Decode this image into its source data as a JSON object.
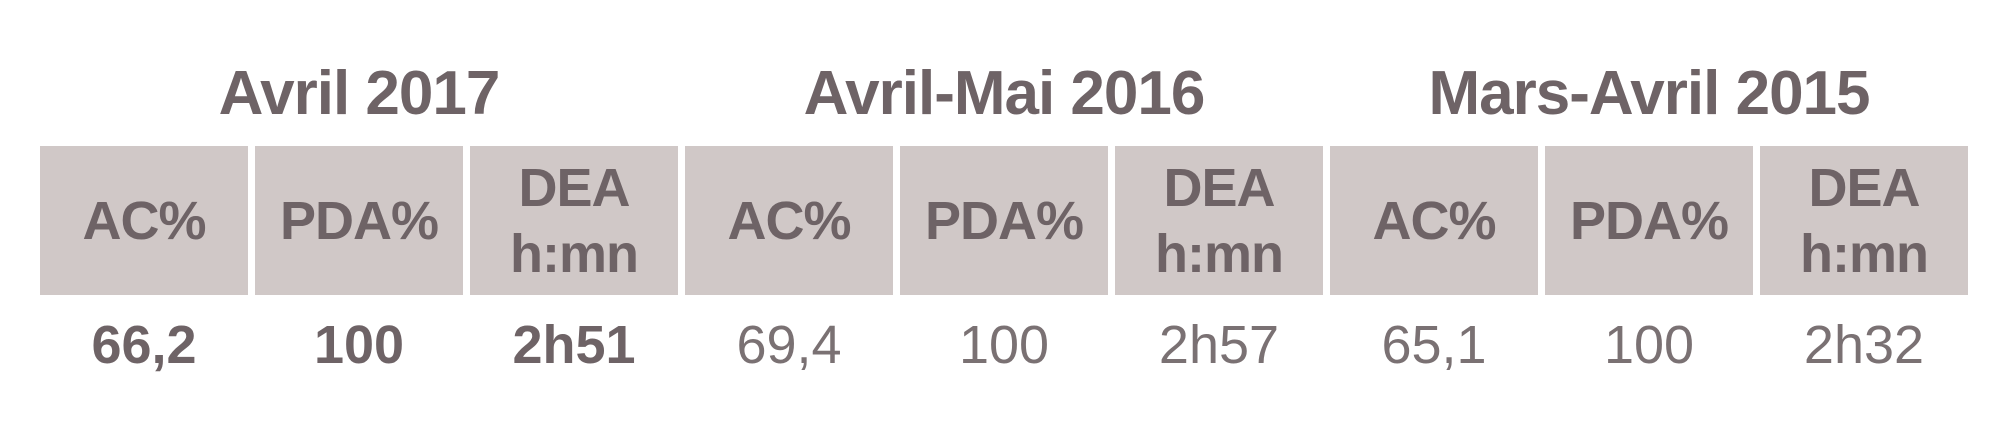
{
  "chart_data": {
    "type": "table",
    "description": "Comparison table of AC%, PDA% and DEA (h:mn) across three survey periods",
    "column_groups": [
      {
        "title": "Avril 2017",
        "emphasized": true,
        "columns": [
          {
            "header_lines": [
              "AC%"
            ],
            "value": "66,2"
          },
          {
            "header_lines": [
              "PDA%"
            ],
            "value": "100"
          },
          {
            "header_lines": [
              "DEA",
              "h:mn"
            ],
            "value": "2h51"
          }
        ]
      },
      {
        "title": "Avril-Mai 2016",
        "emphasized": false,
        "columns": [
          {
            "header_lines": [
              "AC%"
            ],
            "value": "69,4"
          },
          {
            "header_lines": [
              "PDA%"
            ],
            "value": "100"
          },
          {
            "header_lines": [
              "DEA",
              "h:mn"
            ],
            "value": "2h57"
          }
        ]
      },
      {
        "title": "Mars-Avril 2015",
        "emphasized": false,
        "columns": [
          {
            "header_lines": [
              "AC%"
            ],
            "value": "65,1"
          },
          {
            "header_lines": [
              "PDA%"
            ],
            "value": "100"
          },
          {
            "header_lines": [
              "DEA",
              "h:mn"
            ],
            "value": "2h32"
          }
        ]
      }
    ],
    "layout": {
      "grid": "off",
      "header_background": "on"
    }
  },
  "colors": {
    "header_cell_bg": "#d0c8c7",
    "title_text": "#6e6366",
    "header_text": "#6e6366",
    "value_text_emphasized": "#6e6366",
    "value_text_regular": "#7a7173",
    "page_bg": "#ffffff"
  }
}
